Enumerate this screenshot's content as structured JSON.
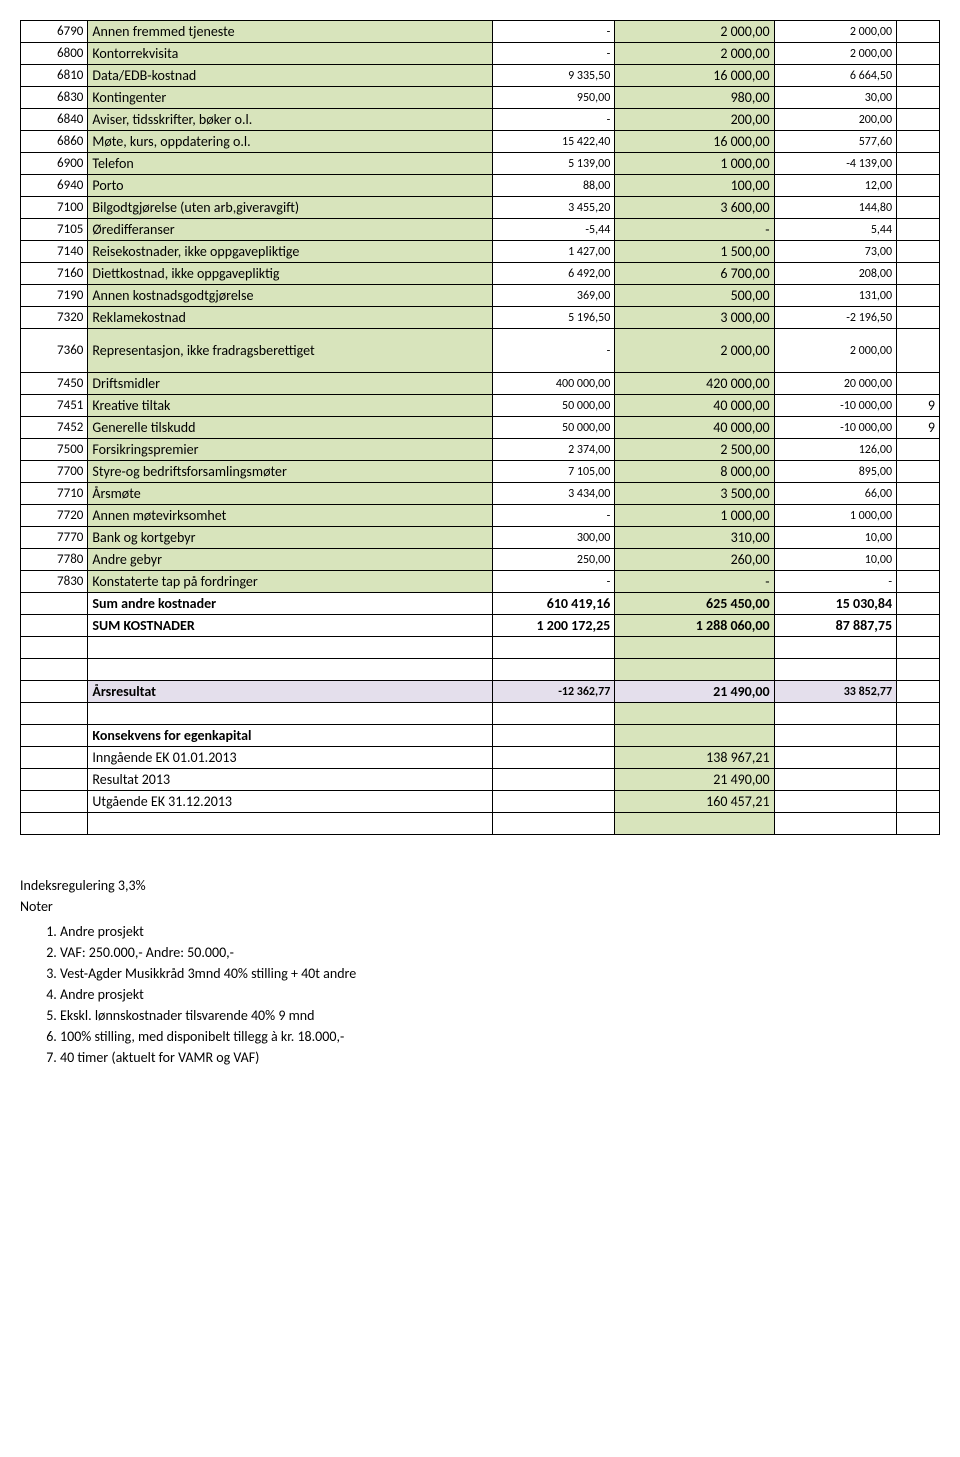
{
  "rows": [
    {
      "code": "6790",
      "desc": "Annen fremmed tjeneste",
      "v1": "-",
      "v2": "2 000,00",
      "v3": "2 000,00",
      "note": "",
      "descGreen": true
    },
    {
      "code": "6800",
      "desc": "Kontorrekvisita",
      "v1": "-",
      "v2": "2 000,00",
      "v3": "2 000,00",
      "note": "",
      "descGreen": true
    },
    {
      "code": "6810",
      "desc": "Data/EDB-kostnad",
      "v1": "9 335,50",
      "v2": "16 000,00",
      "v3": "6 664,50",
      "note": "",
      "descGreen": true
    },
    {
      "code": "6830",
      "desc": "Kontingenter",
      "v1": "950,00",
      "v2": "980,00",
      "v3": "30,00",
      "note": "",
      "descGreen": true
    },
    {
      "code": "6840",
      "desc": "Aviser, tidsskrifter, bøker o.l.",
      "v1": "-",
      "v2": "200,00",
      "v3": "200,00",
      "note": "",
      "descGreen": true
    },
    {
      "code": "6860",
      "desc": "Møte, kurs, oppdatering o.l.",
      "v1": "15 422,40",
      "v2": "16 000,00",
      "v3": "577,60",
      "note": "",
      "descGreen": true
    },
    {
      "code": "6900",
      "desc": "Telefon",
      "v1": "5 139,00",
      "v2": "1 000,00",
      "v3": "-4 139,00",
      "note": "",
      "descGreen": true
    },
    {
      "code": "6940",
      "desc": "Porto",
      "v1": "88,00",
      "v2": "100,00",
      "v3": "12,00",
      "note": "",
      "descGreen": true
    },
    {
      "code": "7100",
      "desc": "Bilgodtgjørelse (uten arb,giveravgift)",
      "v1": "3 455,20",
      "v2": "3 600,00",
      "v3": "144,80",
      "note": "",
      "descGreen": true
    },
    {
      "code": "7105",
      "desc": "Øredifferanser",
      "v1": "-5,44",
      "v2": "-",
      "v3": "5,44",
      "note": "",
      "descGreen": true
    },
    {
      "code": "7140",
      "desc": "Reisekostnader, ikke oppgavepliktige",
      "v1": "1 427,00",
      "v2": "1 500,00",
      "v3": "73,00",
      "note": "",
      "descGreen": true
    },
    {
      "code": "7160",
      "desc": "Diettkostnad, ikke oppgavepliktig",
      "v1": "6 492,00",
      "v2": "6 700,00",
      "v3": "208,00",
      "note": "",
      "descGreen": true
    },
    {
      "code": "7190",
      "desc": "Annen kostnadsgodtgjørelse",
      "v1": "369,00",
      "v2": "500,00",
      "v3": "131,00",
      "note": "",
      "descGreen": true
    },
    {
      "code": "7320",
      "desc": "Reklamekostnad",
      "v1": "5 196,50",
      "v2": "3 000,00",
      "v3": "-2 196,50",
      "note": "",
      "descGreen": true
    },
    {
      "code": "7360",
      "desc": "Representasjon, ikke fradragsberettiget",
      "v1": "-",
      "v2": "2 000,00",
      "v3": "2 000,00",
      "note": "",
      "descGreen": true,
      "tall": true
    },
    {
      "code": "7450",
      "desc": "Driftsmidler",
      "v1": "400 000,00",
      "v2": "420 000,00",
      "v3": "20 000,00",
      "note": "",
      "descGreen": true
    },
    {
      "code": "7451",
      "desc": "Kreative tiltak",
      "v1": "50 000,00",
      "v2": "40 000,00",
      "v3": "-10 000,00",
      "note": "9",
      "descGreen": true
    },
    {
      "code": "7452",
      "desc": "Generelle tilskudd",
      "v1": "50 000,00",
      "v2": "40 000,00",
      "v3": "-10 000,00",
      "note": "9",
      "descGreen": true
    },
    {
      "code": "7500",
      "desc": "Forsikringspremier",
      "v1": "2 374,00",
      "v2": "2 500,00",
      "v3": "126,00",
      "note": "",
      "descGreen": true
    },
    {
      "code": "7700",
      "desc": "Styre-og bedriftsforsamlingsmøter",
      "v1": "7 105,00",
      "v2": "8 000,00",
      "v3": "895,00",
      "note": "",
      "descGreen": true
    },
    {
      "code": "7710",
      "desc": "Årsmøte",
      "v1": "3 434,00",
      "v2": "3 500,00",
      "v3": "66,00",
      "note": "",
      "descGreen": true
    },
    {
      "code": "7720",
      "desc": "Annen møtevirksomhet",
      "v1": "-",
      "v2": "1 000,00",
      "v3": "1 000,00",
      "note": "",
      "descGreen": true
    },
    {
      "code": "7770",
      "desc": "Bank og kortgebyr",
      "v1": "300,00",
      "v2": "310,00",
      "v3": "10,00",
      "note": "",
      "descGreen": true
    },
    {
      "code": "7780",
      "desc": "Andre gebyr",
      "v1": "250,00",
      "v2": "260,00",
      "v3": "10,00",
      "note": "",
      "descGreen": true
    },
    {
      "code": "7830",
      "desc": "Konstaterte tap på fordringer",
      "v1": "-",
      "v2": "-",
      "v3": "-",
      "note": "",
      "descGreen": true
    },
    {
      "code": "",
      "desc": "Sum andre kostnader",
      "v1": "610 419,16",
      "v2": "625 450,00",
      "v3": "15 030,84",
      "note": "",
      "bold": true
    },
    {
      "code": "",
      "desc": "SUM KOSTNADER",
      "v1": "1 200 172,25",
      "v2": "1 288 060,00",
      "v3": "87 887,75",
      "note": "",
      "bold": true
    }
  ],
  "resultRow": {
    "desc": "Årsresultat",
    "v1": "-12 362,77",
    "v2": "21 490,00",
    "v3": "33 852,77"
  },
  "ekHeader": "Konsekvens for egenkapital",
  "ekRows": [
    {
      "desc": "Inngående EK 01.01.2013",
      "v2": "138 967,21"
    },
    {
      "desc": "Resultat 2013",
      "v2": "21 490,00"
    },
    {
      "desc": "Utgående EK 31.12.2013",
      "v2": "160 457,21"
    }
  ],
  "footerHeader1": "Indeksregulering 3,3%",
  "footerHeader2": "Noter",
  "notes": [
    "Andre prosjekt",
    "VAF: 250.000,- Andre: 50.000,-",
    "Vest-Agder Musikkråd 3mnd 40% stilling + 40t andre",
    "Andre prosjekt",
    "Ekskl. lønnskostnader tilsvarende 40% 9 mnd",
    "100% stilling, med disponibelt tillegg à kr. 18.000,-",
    "40 timer (aktuelt for VAMR og VAF)"
  ]
}
